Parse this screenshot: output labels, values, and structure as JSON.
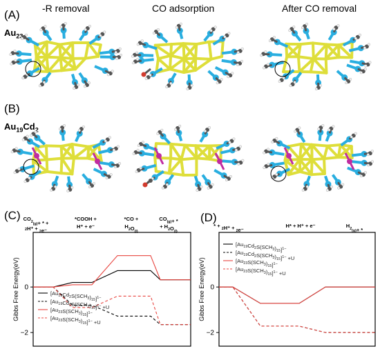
{
  "header": {
    "columns": [
      "-R removal",
      "CO adsorption",
      "After CO removal"
    ]
  },
  "panels": {
    "a": {
      "letter": "(A)",
      "name_main": "Au",
      "name_sub": "23"
    },
    "b": {
      "letter": "(B)",
      "name_main": "Au",
      "name_sub1": "19",
      "name_mid": "Cd",
      "name_sub2": "2"
    },
    "c": {
      "letter": "(C)"
    },
    "d": {
      "letter": "(D)"
    }
  },
  "colors": {
    "gold": "#dede3a",
    "sulfur": "#29aee0",
    "carbon": "#555555",
    "hydrogen": "#f2f2f2",
    "cadmium": "#c02ca0",
    "oxygen": "#d23b2e",
    "black_series": "#000000",
    "red_series": "#e8443f"
  },
  "chart_data": [
    {
      "panel": "(C)",
      "type": "line",
      "ylabel": "Gibbs Free Energy(eV)",
      "ylim": [
        -2.6,
        2.4
      ],
      "yticks": [
        -2,
        0
      ],
      "step_labels": [
        [
          "CO2(g)+ * +",
          "2H⁺ + 2e⁻"
        ],
        [
          "*COOH +",
          "H⁺ + e⁻"
        ],
        [
          "*CO +",
          "H2O(l)"
        ],
        [
          "CO(g)+ *",
          "+ H2O(l)"
        ]
      ],
      "series": [
        {
          "name": "[Au19Cd2S(SCH3)15]1−",
          "style": "solid",
          "color": "#000000",
          "values": [
            0,
            0.2,
            0.72,
            0.32
          ]
        },
        {
          "name": "[Au19Cd2S(SCH3)15]1− +U",
          "style": "dashed",
          "color": "#000000",
          "values": [
            0,
            -0.8,
            -1.28,
            -1.65
          ]
        },
        {
          "name": "[Au23S(SCH3)15]1−",
          "style": "solid",
          "color": "#e8443f",
          "values": [
            0,
            0.1,
            1.38,
            0.32
          ]
        },
        {
          "name": "[Au23S(SCH3)15]1− +U",
          "style": "dashed",
          "color": "#e8443f",
          "values": [
            0,
            -0.9,
            -0.4,
            -1.65
          ]
        }
      ],
      "legend_position": "lower-left"
    },
    {
      "panel": "(D)",
      "type": "line",
      "ylabel": "Gibbs Free Energy(eV)",
      "ylim": [
        -2.6,
        2.4
      ],
      "yticks": [
        -2,
        0
      ],
      "step_labels": [
        [
          "* + 2H⁺ + 2e⁻"
        ],
        [
          "H* + H⁺ + e⁻"
        ],
        [
          "H2(g)+ *"
        ]
      ],
      "series": [
        {
          "name": "[Au19Cd2S(SCH3)15]1−",
          "style": "solid",
          "color": "#000000",
          "values": [
            0,
            -0.72,
            0
          ]
        },
        {
          "name": "[Au19Cd2S(SCH3)15]1− +U",
          "style": "dashed",
          "color": "#000000",
          "values": [
            0,
            -1.72,
            -2.0
          ]
        },
        {
          "name": "[Au23S(SCH3)15]1−",
          "style": "solid",
          "color": "#e8443f",
          "values": [
            0,
            -0.72,
            0
          ]
        },
        {
          "name": "[Au23S(SCH3)15]1− +U",
          "style": "dashed",
          "color": "#e8443f",
          "values": [
            0,
            -1.72,
            -2.0
          ]
        }
      ],
      "legend_position": "top-left"
    }
  ]
}
